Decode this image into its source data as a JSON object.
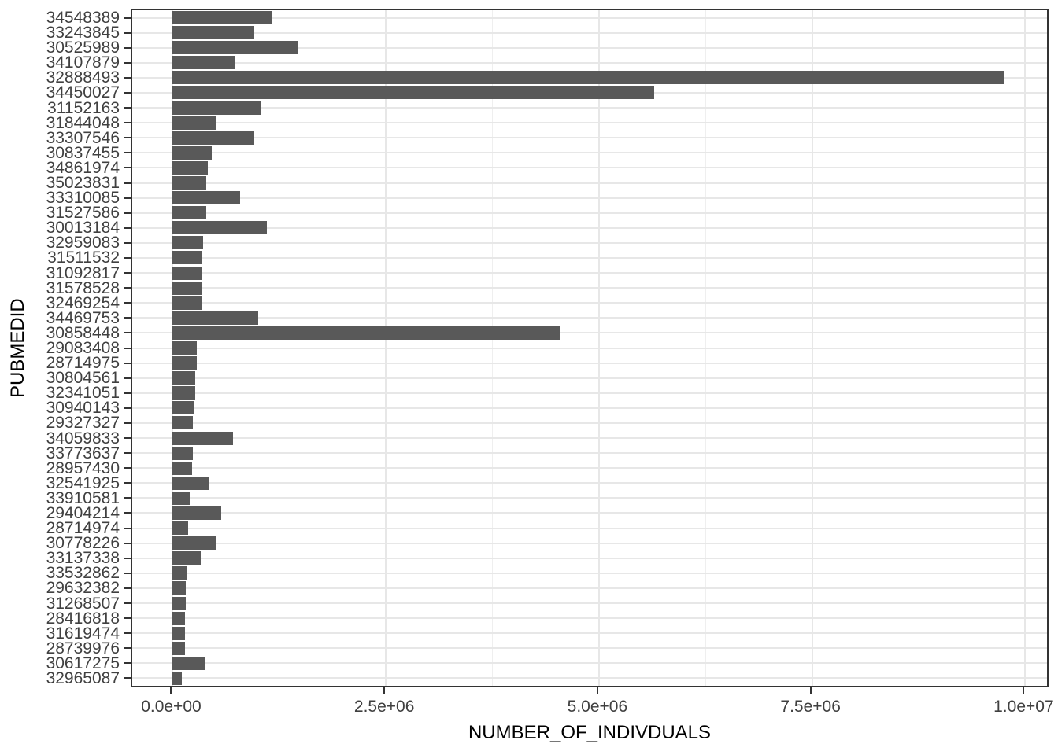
{
  "chart_data": {
    "type": "bar",
    "orientation": "horizontal",
    "title": "",
    "xlabel": "NUMBER_OF_INDIVDUALS",
    "ylabel": "PUBMEDID",
    "legend": false,
    "grid": true,
    "xlim": [
      -475000,
      10255000
    ],
    "x_tick_labels": [
      "0.0e+00",
      "2.5e+06",
      "5.0e+06",
      "7.5e+06",
      "1.0e+07"
    ],
    "x_tick_values": [
      0,
      2500000,
      5000000,
      7500000,
      10000000
    ],
    "x_minor_tick_values": [
      1250000,
      3750000,
      6250000,
      8750000
    ],
    "categories": [
      "34548389",
      "33243845",
      "30525989",
      "34107879",
      "32888493",
      "34450027",
      "31152163",
      "31844048",
      "33307546",
      "30837455",
      "34861974",
      "35023831",
      "33310085",
      "31527586",
      "30013184",
      "32959083",
      "31511532",
      "31092817",
      "31578528",
      "32469254",
      "34469753",
      "30858448",
      "29083408",
      "28714975",
      "30804561",
      "32341051",
      "30940143",
      "29327327",
      "34059833",
      "33773637",
      "28957430",
      "32541925",
      "33910581",
      "29404214",
      "28714974",
      "30778226",
      "33137338",
      "33532862",
      "29632382",
      "31268507",
      "28416818",
      "31619474",
      "28739976",
      "30617275",
      "32965087"
    ],
    "values": [
      1160000,
      960000,
      1470000,
      730000,
      9760000,
      5650000,
      1040000,
      510000,
      960000,
      460000,
      410000,
      390000,
      790000,
      390000,
      1100000,
      360000,
      350000,
      350000,
      350000,
      340000,
      1000000,
      4540000,
      285000,
      280000,
      260000,
      260000,
      250000,
      240000,
      710000,
      240000,
      230000,
      430000,
      200000,
      570000,
      180000,
      500000,
      330000,
      165000,
      150000,
      150000,
      140000,
      140000,
      140000,
      380000,
      105000
    ]
  },
  "colors": {
    "bar": "#595959",
    "panel_border": "#333333",
    "grid_major": "#e7e7e7",
    "grid_minor": "#efefef",
    "tick": "#333333",
    "tick_label": "#404040",
    "axis_title": "#000000",
    "background": "#ffffff"
  }
}
